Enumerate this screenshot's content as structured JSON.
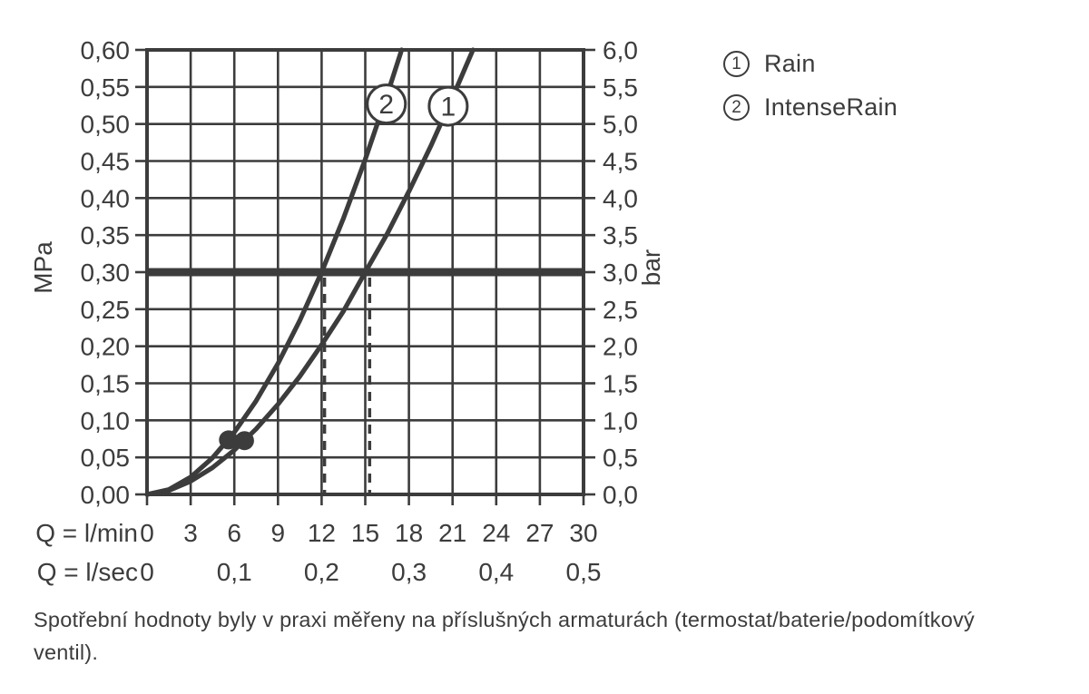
{
  "chart_data": {
    "type": "line",
    "title": "",
    "grid": true,
    "x_axis": {
      "range": [
        0,
        30
      ],
      "grid_step": 3,
      "row_lmin": {
        "label": "Q = l/min",
        "values": [
          "0",
          "3",
          "6",
          "9",
          "12",
          "15",
          "18",
          "21",
          "24",
          "27",
          "30"
        ]
      },
      "row_lsec": {
        "label": "Q = l/sec",
        "values": [
          {
            "text": "0",
            "q": 0
          },
          {
            "text": "0,1",
            "q": 6
          },
          {
            "text": "0,2",
            "q": 12
          },
          {
            "text": "0,3",
            "q": 18
          },
          {
            "text": "0,4",
            "q": 24
          },
          {
            "text": "0,5",
            "q": 30
          }
        ]
      }
    },
    "left_axis": {
      "unit": "MPa",
      "range": [
        0,
        0.6
      ],
      "ticks": [
        "0,60",
        "0,55",
        "0,50",
        "0,45",
        "0,40",
        "0,35",
        "0,30",
        "0,25",
        "0,20",
        "0,15",
        "0,10",
        "0,05",
        "0,00"
      ]
    },
    "right_axis": {
      "unit": "bar",
      "range": [
        0,
        6
      ],
      "ticks": [
        "6,0",
        "5,5",
        "5,0",
        "4,5",
        "4,0",
        "3,5",
        "3,0",
        "2,5",
        "2,0",
        "1,5",
        "1,0",
        "0,5",
        "0,0"
      ]
    },
    "reference_line_mpa": 0.3,
    "dashed_drop_lines_lmin": [
      12.2,
      15.3
    ],
    "series": [
      {
        "id": "1",
        "name": "Rain",
        "points": [
          [
            0,
            0
          ],
          [
            1.5,
            0.0053
          ],
          [
            3,
            0.0178
          ],
          [
            4.5,
            0.0361
          ],
          [
            6,
            0.0598
          ],
          [
            7.5,
            0.0884
          ],
          [
            9,
            0.1216
          ],
          [
            10.5,
            0.1593
          ],
          [
            12,
            0.202
          ],
          [
            13.5,
            0.2473
          ],
          [
            15,
            0.3
          ],
          [
            16.5,
            0.3515
          ],
          [
            18,
            0.409
          ],
          [
            19.5,
            0.47
          ],
          [
            21,
            0.536
          ],
          [
            22.4,
            0.6
          ]
        ],
        "marker": [
          6.7,
          0.0726
        ],
        "label": {
          "q": 20.7,
          "p": 0.524,
          "text": "1"
        }
      },
      {
        "id": "2",
        "name": "IntenseRain",
        "points": [
          [
            0,
            0
          ],
          [
            1.5,
            0.0065
          ],
          [
            3,
            0.0234
          ],
          [
            4.5,
            0.0493
          ],
          [
            6,
            0.0838
          ],
          [
            7.5,
            0.1263
          ],
          [
            9,
            0.1767
          ],
          [
            10.5,
            0.2347
          ],
          [
            12,
            0.3
          ],
          [
            13.5,
            0.3726
          ],
          [
            15,
            0.4523
          ],
          [
            16.5,
            0.539
          ],
          [
            17.5,
            0.6
          ]
        ],
        "marker": [
          5.6,
          0.0736
        ],
        "label": {
          "q": 16.45,
          "p": 0.527,
          "text": "2"
        }
      }
    ],
    "colors": {
      "ink": "#3c3c3c",
      "background": "#ffffff"
    }
  },
  "legend": {
    "items": [
      {
        "number": "1",
        "label": "Rain"
      },
      {
        "number": "2",
        "label": "IntenseRain"
      }
    ]
  },
  "caption": {
    "line1": "Spotřební hodnoty byly v praxi měřeny na příslušných armaturách (termostat/baterie/podomítkový",
    "line2": "ventil)."
  }
}
